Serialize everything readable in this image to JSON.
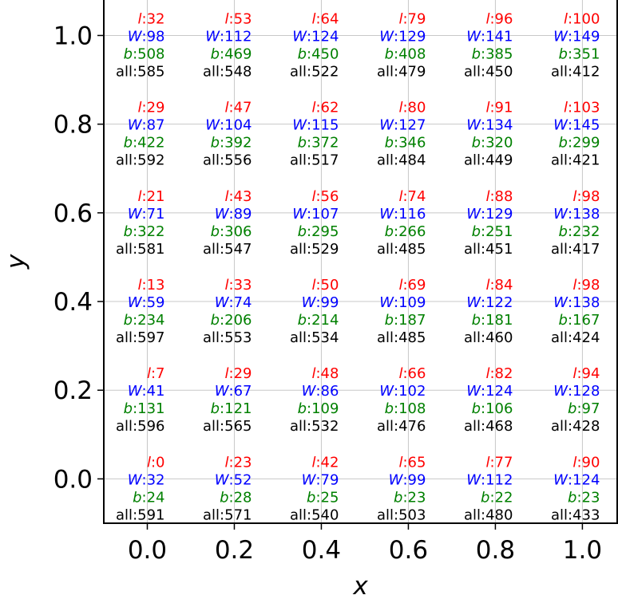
{
  "chart_data": {
    "type": "table",
    "xlabel": "x",
    "ylabel": "y",
    "x": [
      0.0,
      0.2,
      0.4,
      0.6,
      0.8,
      1.0
    ],
    "y": [
      0.0,
      0.2,
      0.4,
      0.6,
      0.8,
      1.0
    ],
    "xticks": [
      "0.0",
      "0.2",
      "0.4",
      "0.6",
      "0.8",
      "1.0"
    ],
    "yticks": [
      "0.0",
      "0.2",
      "0.4",
      "0.6",
      "0.8",
      "1.0"
    ],
    "xlim": [
      -0.1,
      1.08
    ],
    "ylim": [
      -0.1,
      1.08
    ],
    "grid": true,
    "series": [
      {
        "prefix": "l",
        "color": "#ff0000",
        "italic": true,
        "values": [
          [
            0,
            23,
            42,
            65,
            77,
            90
          ],
          [
            7,
            29,
            48,
            66,
            82,
            94
          ],
          [
            13,
            33,
            50,
            69,
            84,
            98
          ],
          [
            21,
            43,
            56,
            74,
            88,
            98
          ],
          [
            29,
            47,
            62,
            80,
            91,
            103
          ],
          [
            32,
            53,
            64,
            79,
            96,
            100
          ]
        ]
      },
      {
        "prefix": "W",
        "color": "#0000ff",
        "italic": true,
        "values": [
          [
            32,
            52,
            79,
            99,
            112,
            124
          ],
          [
            41,
            67,
            86,
            102,
            124,
            128
          ],
          [
            59,
            74,
            99,
            109,
            122,
            138
          ],
          [
            71,
            89,
            107,
            116,
            129,
            138
          ],
          [
            87,
            104,
            115,
            127,
            134,
            145
          ],
          [
            98,
            112,
            124,
            129,
            141,
            149
          ]
        ]
      },
      {
        "prefix": "b",
        "color": "#008000",
        "italic": true,
        "values": [
          [
            24,
            28,
            25,
            23,
            22,
            23
          ],
          [
            131,
            121,
            109,
            108,
            106,
            97
          ],
          [
            234,
            206,
            214,
            187,
            181,
            167
          ],
          [
            322,
            306,
            295,
            266,
            251,
            232
          ],
          [
            422,
            392,
            372,
            346,
            320,
            299
          ],
          [
            508,
            469,
            450,
            408,
            385,
            351
          ]
        ]
      },
      {
        "prefix": "all",
        "color": "#000000",
        "italic": false,
        "values": [
          [
            591,
            571,
            540,
            503,
            480,
            433
          ],
          [
            596,
            565,
            532,
            476,
            468,
            428
          ],
          [
            597,
            553,
            534,
            485,
            460,
            424
          ],
          [
            581,
            547,
            529,
            485,
            451,
            417
          ],
          [
            592,
            556,
            517,
            484,
            449,
            421
          ],
          [
            585,
            548,
            522,
            479,
            450,
            412
          ]
        ]
      }
    ]
  }
}
